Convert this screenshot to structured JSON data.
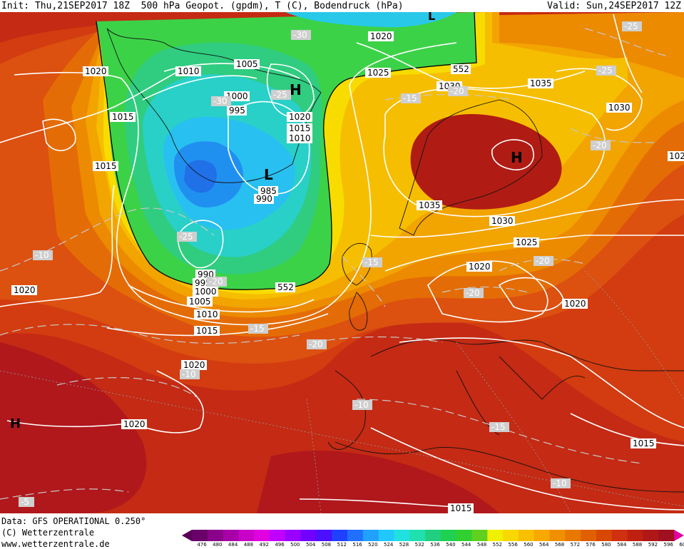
{
  "header": {
    "init": "Init: Thu,21SEP2017 18Z",
    "title": "500 hPa Geopot. (gpdm), T (C), Bodendruck (hPa)",
    "valid": "Valid: Sun,24SEP2017 12Z"
  },
  "footer": {
    "data": "Data: GFS OPERATIONAL 0.250°",
    "copyright": "(C) Wetterzentrale",
    "url": "www.wetterzentrale.de"
  },
  "scale": {
    "values": [
      "476",
      "480",
      "484",
      "488",
      "492",
      "496",
      "500",
      "504",
      "508",
      "512",
      "516",
      "520",
      "524",
      "528",
      "532",
      "536",
      "540",
      "544",
      "548",
      "552",
      "556",
      "560",
      "564",
      "568",
      "572",
      "576",
      "580",
      "584",
      "588",
      "592",
      "596",
      "600"
    ],
    "colors": [
      "#6a006a",
      "#8a008a",
      "#a800a8",
      "#c800c8",
      "#e000e0",
      "#c000ff",
      "#9a00ff",
      "#7000ff",
      "#4a10ff",
      "#2040ff",
      "#2070ff",
      "#20a0ff",
      "#20c8ff",
      "#20e0e0",
      "#20e0b0",
      "#20d080",
      "#20d050",
      "#30d030",
      "#60d020",
      "#f0f000",
      "#f8d800",
      "#f8c000",
      "#f8a800",
      "#f09000",
      "#e87800",
      "#e06000",
      "#d84800",
      "#d03010",
      "#c02010",
      "#b01818",
      "#a01020",
      "#e000a0"
    ]
  },
  "labels": {
    "highs": [
      "H",
      "H",
      "H"
    ],
    "lows": [
      "L",
      "L"
    ],
    "isobars": [
      "1020",
      "1010",
      "1005",
      "1000",
      "995",
      "1015",
      "1020",
      "1015",
      "1010",
      "1015",
      "1020",
      "1025",
      "1030",
      "1035",
      "1030",
      "1020",
      "1035",
      "1030",
      "1025",
      "1020",
      "1020",
      "985",
      "990",
      "990",
      "995",
      "1000",
      "1005",
      "1010",
      "1015",
      "1020",
      "1020",
      "1015",
      "1015",
      "1020",
      "102"
    ],
    "temps": [
      "-30",
      "-30",
      "-25",
      "-25",
      "-25",
      "-25",
      "-20",
      "-20",
      "-15",
      "-15",
      "-15",
      "-20",
      "-20",
      "-10",
      "-10",
      "-10",
      "-15",
      "-10",
      "-5",
      "-20",
      "-20",
      "-25"
    ],
    "heights": [
      "552",
      "552"
    ]
  }
}
